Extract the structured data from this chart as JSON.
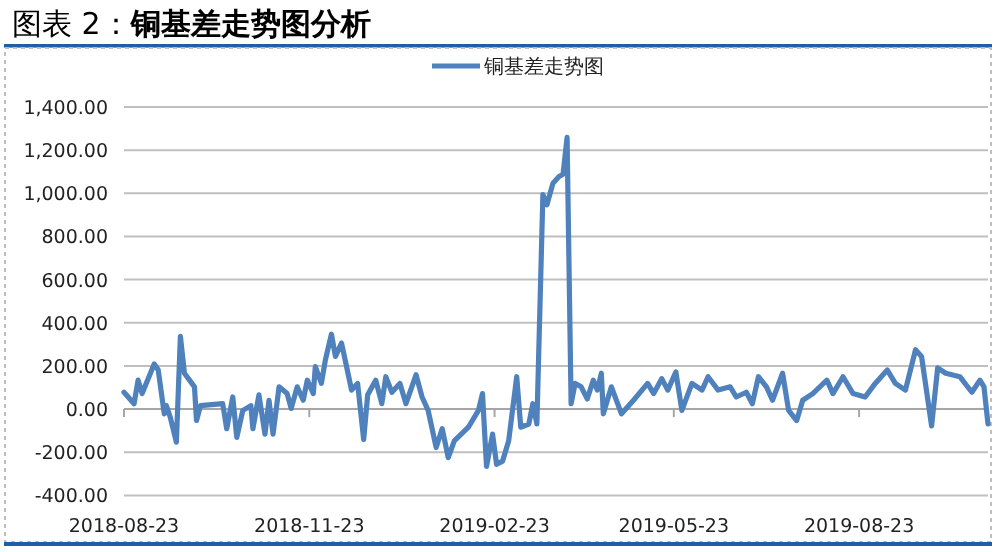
{
  "chart_data": {
    "type": "line",
    "title": "图表 2：**铜基差走势图分析**",
    "x": [
      "2018-08-23",
      "2018-08-28",
      "2018-08-30",
      "2018-09-01",
      "2018-09-07",
      "2018-09-09",
      "2018-09-12",
      "2018-09-13",
      "2018-09-15",
      "2018-09-18",
      "2018-09-20",
      "2018-09-22",
      "2018-09-27",
      "2018-09-28",
      "2018-09-30",
      "2018-10-11",
      "2018-10-13",
      "2018-10-16",
      "2018-10-18",
      "2018-10-21",
      "2018-10-25",
      "2018-10-26",
      "2018-10-29",
      "2018-11-01",
      "2018-11-03",
      "2018-11-05",
      "2018-11-08",
      "2018-11-12",
      "2018-11-14",
      "2018-11-17",
      "2018-11-20",
      "2018-11-22",
      "2018-11-25",
      "2018-11-26",
      "2018-11-29",
      "2018-12-01",
      "2018-12-04",
      "2018-12-06",
      "2018-12-09",
      "2018-12-14",
      "2018-12-17",
      "2018-12-20",
      "2018-12-22",
      "2018-12-26",
      "2018-12-29",
      "2018-12-31",
      "2019-01-03",
      "2019-01-07",
      "2019-01-10",
      "2019-01-15",
      "2019-01-18",
      "2019-01-21",
      "2019-01-25",
      "2019-01-28",
      "2019-01-31",
      "2019-02-03",
      "2019-02-10",
      "2019-02-15",
      "2019-02-17",
      "2019-02-19",
      "2019-02-22",
      "2019-02-24",
      "2019-02-27",
      "2019-03-02",
      "2019-03-06",
      "2019-03-08",
      "2019-03-12",
      "2019-03-14",
      "2019-03-16",
      "2019-03-19",
      "2019-03-21",
      "2019-03-24",
      "2019-03-27",
      "2019-03-29",
      "2019-03-31",
      "2019-04-02",
      "2019-04-04",
      "2019-04-07",
      "2019-04-10",
      "2019-04-13",
      "2019-04-15",
      "2019-04-17",
      "2019-04-18",
      "2019-04-22",
      "2019-04-27",
      "2019-05-03",
      "2019-05-10",
      "2019-05-13",
      "2019-05-17",
      "2019-05-20",
      "2019-05-24",
      "2019-05-27",
      "2019-06-01",
      "2019-06-06",
      "2019-06-09",
      "2019-06-14",
      "2019-06-20",
      "2019-06-23",
      "2019-06-28",
      "2019-07-01",
      "2019-07-04",
      "2019-07-08",
      "2019-07-11",
      "2019-07-16",
      "2019-07-19",
      "2019-07-23",
      "2019-07-26",
      "2019-07-31",
      "2019-08-07",
      "2019-08-10",
      "2019-08-15",
      "2019-08-20",
      "2019-08-26",
      "2019-08-31",
      "2019-09-06",
      "2019-09-10",
      "2019-09-15",
      "2019-09-20",
      "2019-09-23",
      "2019-09-28",
      "2019-10-01",
      "2019-10-05",
      "2019-10-12",
      "2019-10-18",
      "2019-10-22",
      "2019-10-24",
      "2019-10-26"
    ],
    "series": [
      {
        "name": "铜基差走势图",
        "color": "#4f81bd",
        "values": [
          78,
          25,
          134,
          72,
          209,
          181,
          -22,
          16,
          -38,
          -153,
          337,
          166,
          103,
          -53,
          16,
          25,
          -91,
          56,
          -131,
          -6,
          16,
          -91,
          66,
          -116,
          41,
          -116,
          103,
          72,
          3,
          103,
          41,
          134,
          72,
          197,
          119,
          228,
          347,
          244,
          306,
          88,
          119,
          -141,
          66,
          134,
          25,
          150,
          78,
          119,
          25,
          159,
          56,
          -6,
          -178,
          -91,
          -225,
          -147,
          -84,
          -6,
          72,
          -266,
          -116,
          -256,
          -241,
          -147,
          150,
          -84,
          -69,
          25,
          -69,
          994,
          947,
          1047,
          1078,
          1088,
          1259,
          25,
          119,
          103,
          47,
          134,
          88,
          166,
          -22,
          103,
          -22,
          41,
          119,
          72,
          141,
          88,
          172,
          -6,
          119,
          88,
          150,
          88,
          103,
          56,
          78,
          25,
          150,
          103,
          41,
          166,
          -6,
          -53,
          41,
          72,
          134,
          72,
          150,
          72,
          56,
          119,
          181,
          119,
          88,
          275,
          244,
          -78,
          191,
          166,
          150,
          78,
          134,
          103,
          -69
        ]
      }
    ],
    "xlim": [
      "2018-08-23",
      "2019-10-26"
    ],
    "xticks": [
      "2018-08-23",
      "2018-11-23",
      "2019-02-23",
      "2019-05-23",
      "2019-08-23"
    ],
    "ylim": [
      -400,
      1400
    ],
    "yticks": [
      {
        "value": -400,
        "label": "-400.00"
      },
      {
        "value": -200,
        "label": "-200.00"
      },
      {
        "value": 0,
        "label": "0.00"
      },
      {
        "value": 200,
        "label": "200.00"
      },
      {
        "value": 400,
        "label": "400.00"
      },
      {
        "value": 600,
        "label": "600.00"
      },
      {
        "value": 800,
        "label": "800.00"
      },
      {
        "value": 1000,
        "label": "1,000.00"
      },
      {
        "value": 1200,
        "label": "1,200.00"
      },
      {
        "value": 1400,
        "label": "1,400.00"
      }
    ],
    "grid": "y",
    "legend": "top"
  }
}
